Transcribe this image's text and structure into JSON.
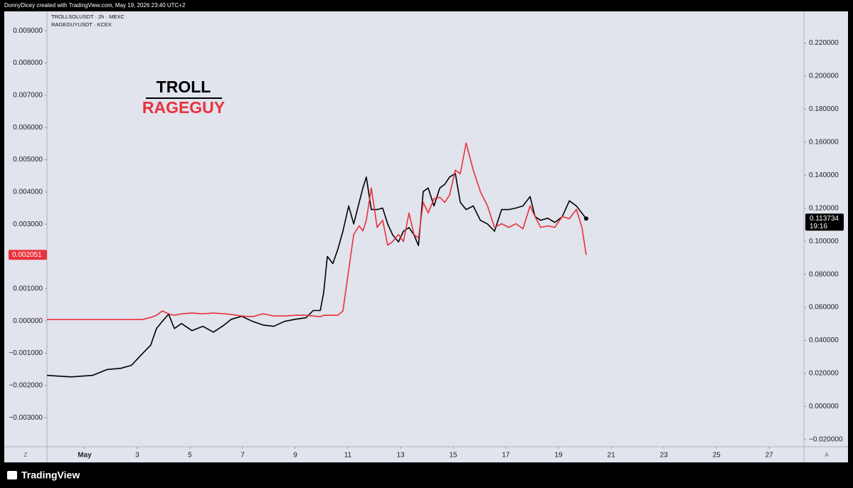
{
  "chart_data": {
    "type": "line",
    "header": "DonnyDicey created with TradingView.com, May 19, 2026 23:40 UTC+2",
    "annotations": [
      "TROLL",
      "RAGEGUY"
    ],
    "countdown": "19:16",
    "footer": "TradingView",
    "buttons": [
      "Z",
      "A"
    ],
    "x": [
      -0.43,
      0.49,
      1.3,
      1.84,
      2.38,
      2.78,
      3.19,
      3.51,
      3.73,
      3.95,
      4.19,
      4.41,
      4.68,
      5.08,
      5.49,
      5.89,
      6.3,
      6.57,
      6.97,
      7.38,
      7.78,
      8.19,
      8.59,
      9,
      9.41,
      9.68,
      9.95,
      10.08,
      10.22,
      10.43,
      10.62,
      10.81,
      11.03,
      11.22,
      11.43,
      11.57,
      11.7,
      11.89,
      12.11,
      12.32,
      12.51,
      12.7,
      12.92,
      13.11,
      13.32,
      13.51,
      13.68,
      13.86,
      14.05,
      14.27,
      14.49,
      14.68,
      14.86,
      15.08,
      15.27,
      15.49,
      15.76,
      16.03,
      16.3,
      16.57,
      16.84,
      17.11,
      17.38,
      17.65,
      17.92,
      18.11,
      18.32,
      18.59,
      18.86,
      19.14,
      19.41,
      19.68,
      19.89,
      20.05
    ],
    "series": [
      {
        "name": "TROLLSOLUSDT · 2h · MEXC",
        "color": "#000000",
        "axis": "y2",
        "values": [
          0.0188,
          0.0179,
          0.0188,
          0.0223,
          0.0231,
          0.0249,
          0.0319,
          0.0371,
          0.0472,
          0.0515,
          0.0559,
          0.0472,
          0.0502,
          0.0459,
          0.0485,
          0.045,
          0.0493,
          0.0528,
          0.0546,
          0.0515,
          0.0493,
          0.0485,
          0.0515,
          0.0528,
          0.0537,
          0.0581,
          0.0581,
          0.069,
          0.0908,
          0.0865,
          0.0952,
          0.1061,
          0.1214,
          0.1105,
          0.1236,
          0.1323,
          0.1389,
          0.1192,
          0.1192,
          0.1201,
          0.1105,
          0.1039,
          0.0996,
          0.1061,
          0.1083,
          0.1039,
          0.0974,
          0.1301,
          0.1323,
          0.1214,
          0.1323,
          0.1345,
          0.1389,
          0.1411,
          0.1236,
          0.1192,
          0.1214,
          0.1127,
          0.1105,
          0.1061,
          0.1192,
          0.1192,
          0.1201,
          0.1214,
          0.1271,
          0.1149,
          0.1127,
          0.114,
          0.1114,
          0.1149,
          0.1245,
          0.1214,
          0.117,
          0.113734
        ]
      },
      {
        "name": "RAGEGUYUSDT · KCEX",
        "color": "#e8323c",
        "axis": "y",
        "values": [
          4.4e-05,
          4.4e-05,
          4.4e-05,
          4.4e-05,
          4.4e-05,
          4.4e-05,
          4.4e-05,
          0.000111,
          0.000177,
          0.00031,
          0.000222,
          0.000177,
          0.000222,
          0.000244,
          0.000222,
          0.000244,
          0.000222,
          0.0002,
          0.000155,
          0.000133,
          0.000222,
          0.000155,
          0.000155,
          0.000177,
          0.000177,
          0.000155,
          0.000133,
          0.000177,
          0.000177,
          0.000177,
          0.000177,
          0.00031,
          0.001574,
          0.002683,
          0.002949,
          0.002793,
          0.003126,
          0.004124,
          0.002904,
          0.003126,
          0.00235,
          0.002461,
          0.002683,
          0.002461,
          0.003348,
          0.002683,
          0.002572,
          0.00368,
          0.003348,
          0.003791,
          0.003835,
          0.00368,
          0.003902,
          0.004678,
          0.004567,
          0.00552,
          0.004678,
          0.004013,
          0.003569,
          0.002904,
          0.003015,
          0.002904,
          0.003015,
          0.00286,
          0.003569,
          0.003237,
          0.002904,
          0.002949,
          0.002904,
          0.003237,
          0.00317,
          0.003459,
          0.002904,
          0.002051
        ]
      }
    ],
    "xlim": [
      -0.43,
      28.32
    ],
    "xticks": [
      {
        "value": 1,
        "label": "May"
      },
      3,
      5,
      7,
      9,
      11,
      13,
      15,
      17,
      19,
      21,
      23,
      25,
      27
    ],
    "ylim": [
      -0.0039,
      0.0096
    ],
    "yticks": [
      {
        "value": 0.009,
        "label": "0.009000"
      },
      {
        "value": 0.008,
        "label": "0.008000"
      },
      {
        "value": 0.007,
        "label": "0.007000"
      },
      {
        "value": 0.006,
        "label": "0.006000"
      },
      {
        "value": 0.005,
        "label": "0.005000"
      },
      {
        "value": 0.004,
        "label": "0.004000"
      },
      {
        "value": 0.003,
        "label": "0.003000"
      },
      {
        "value": 0.002,
        "label": "0.002000"
      },
      {
        "value": 0.001,
        "label": "0.001000"
      },
      {
        "value": 0,
        "label": "0.000000"
      },
      {
        "value": -0.001,
        "label": "−0.001000"
      },
      {
        "value": -0.002,
        "label": "−0.002000"
      },
      {
        "value": -0.003,
        "label": "−0.003000"
      }
    ],
    "y2lim": [
      -0.0244,
      0.2392
    ],
    "y2ticks": [
      {
        "value": 0.22,
        "label": "0.220000"
      },
      {
        "value": 0.2,
        "label": "0.200000"
      },
      {
        "value": 0.18,
        "label": "0.180000"
      },
      {
        "value": 0.16,
        "label": "0.160000"
      },
      {
        "value": 0.14,
        "label": "0.140000"
      },
      {
        "value": 0.12,
        "label": "0.120000"
      },
      {
        "value": 0.1,
        "label": "0.100000"
      },
      {
        "value": 0.08,
        "label": "0.080000"
      },
      {
        "value": 0.06,
        "label": "0.060000"
      },
      {
        "value": 0.04,
        "label": "0.040000"
      },
      {
        "value": 0.02,
        "label": "0.020000"
      },
      {
        "value": 0,
        "label": "0.000000"
      },
      {
        "value": -0.02,
        "label": "−0.020000"
      }
    ],
    "grid": false
  }
}
